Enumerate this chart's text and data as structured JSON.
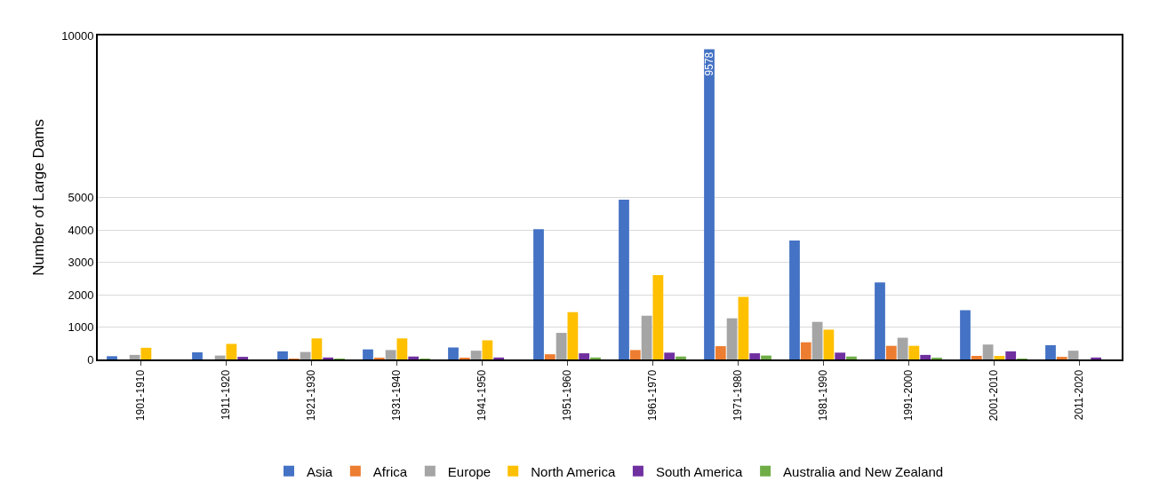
{
  "chart_data": {
    "type": "bar",
    "ylabel": "Number of Large Dams",
    "categories": [
      "1901-1910",
      "1911-1920",
      "1921-1930",
      "1931-1940",
      "1941-1950",
      "1951-1960",
      "1961-1970",
      "1971-1980",
      "1981-1990",
      "1991-2000",
      "2001-2010",
      "2011-2020"
    ],
    "series": [
      {
        "name": "Asia",
        "color": "#4472c4",
        "values": [
          100,
          220,
          250,
          310,
          370,
          4020,
          4930,
          9578,
          3670,
          2380,
          1520,
          440
        ],
        "value_labels": [
          null,
          null,
          null,
          null,
          null,
          null,
          null,
          "9578",
          null,
          null,
          null,
          null
        ]
      },
      {
        "name": "Africa",
        "color": "#ed7d31",
        "values": [
          0,
          0,
          20,
          40,
          40,
          160,
          290,
          410,
          530,
          420,
          110,
          80
        ]
      },
      {
        "name": "Europe",
        "color": "#a5a5a5",
        "values": [
          140,
          120,
          230,
          290,
          270,
          820,
          1350,
          1270,
          1160,
          670,
          460,
          270
        ]
      },
      {
        "name": "North America",
        "color": "#ffc000",
        "values": [
          360,
          480,
          650,
          650,
          590,
          1460,
          2600,
          1930,
          920,
          420,
          110,
          0
        ]
      },
      {
        "name": "South America",
        "color": "#7030a0",
        "values": [
          0,
          80,
          60,
          90,
          60,
          190,
          210,
          190,
          210,
          140,
          250,
          60
        ]
      },
      {
        "name": "Australia and New Zealand",
        "color": "#70ad47",
        "values": [
          0,
          0,
          20,
          20,
          0,
          60,
          90,
          120,
          90,
          40,
          20,
          0
        ]
      }
    ],
    "ylim": [
      0,
      10000
    ],
    "yticks": [
      0,
      1000,
      2000,
      3000,
      4000,
      5000,
      10000
    ],
    "grid": "y",
    "legend": "bottom"
  }
}
